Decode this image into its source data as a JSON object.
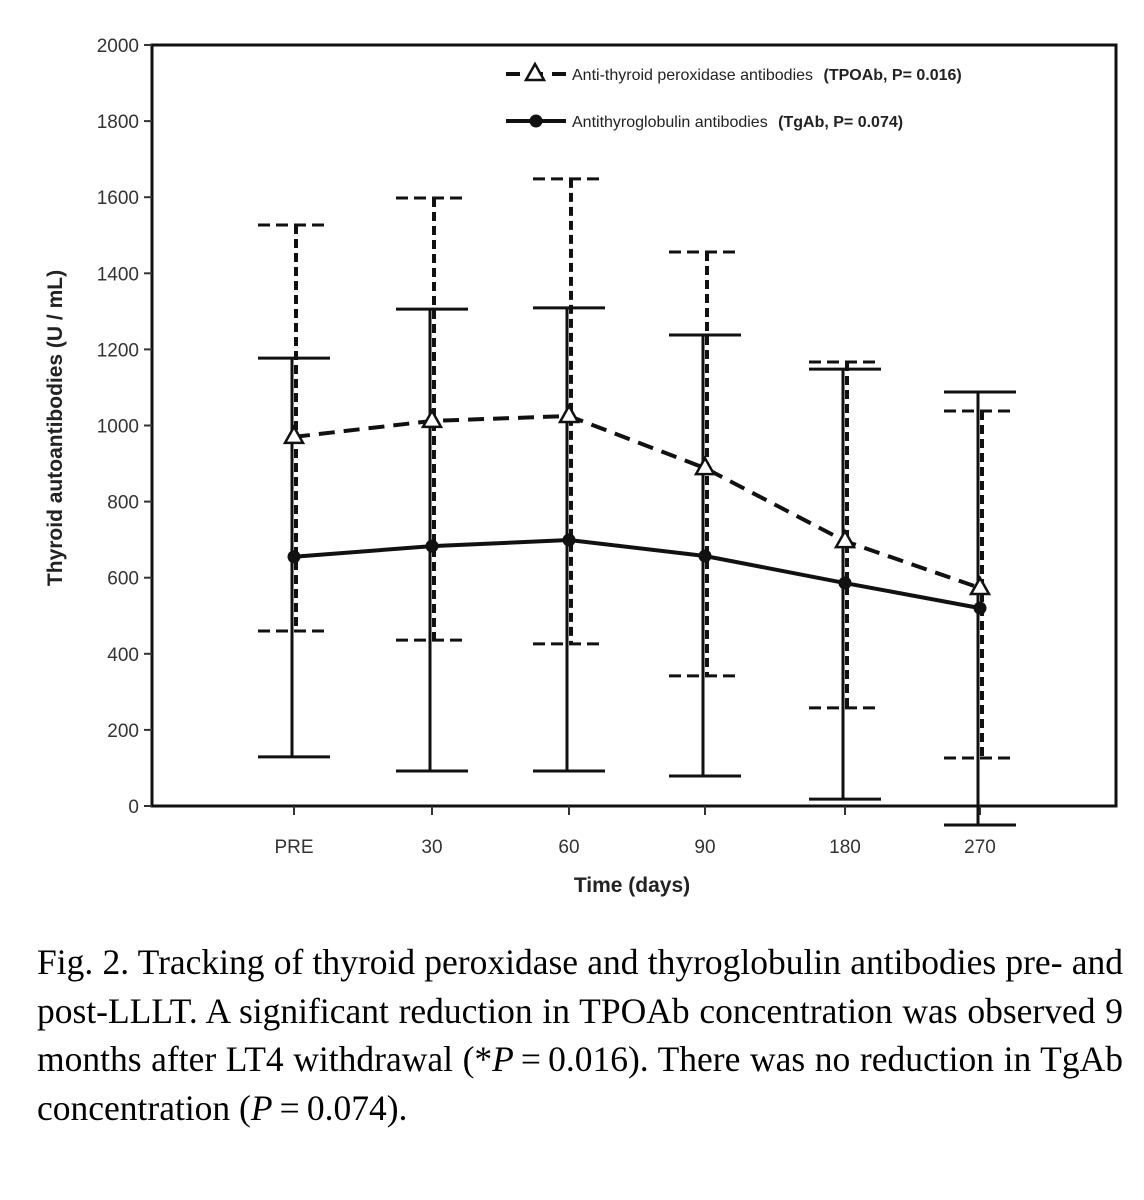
{
  "chart_data": {
    "type": "line",
    "title": "",
    "xlabel": "Time  (days)",
    "ylabel": "Thyroid autoantibodies (U / mL)",
    "categories": [
      "PRE",
      "30",
      "60",
      "90",
      "180",
      "270"
    ],
    "ylim": [
      0,
      2000
    ],
    "yticks": [
      0,
      200,
      400,
      600,
      800,
      1000,
      1200,
      1400,
      1600,
      1800,
      2000
    ],
    "grid": false,
    "legend_position": "top-right",
    "series": [
      {
        "name": "Anti-thyroid peroxidase antibodies",
        "legend_bold": "(TPOAb, P= 0.016)",
        "marker": "open-triangle",
        "line_style": "dashed",
        "values": [
          970,
          1012,
          1025,
          888,
          696,
          573
        ],
        "error_upper": [
          1527,
          1598,
          1648,
          1456,
          1167,
          1038
        ],
        "error_lower": [
          460,
          436,
          426,
          342,
          258,
          126
        ]
      },
      {
        "name": "Antithyroglobulin antibodies",
        "legend_bold": "(TgAb, P= 0.074)",
        "marker": "filled-circle",
        "line_style": "solid",
        "values": [
          655,
          683,
          699,
          657,
          586,
          520
        ],
        "error_upper": [
          1177,
          1306,
          1309,
          1238,
          1148,
          1088
        ],
        "error_lower": [
          129,
          92,
          92,
          79,
          18,
          -50
        ]
      }
    ]
  },
  "caption": {
    "lead": "Fig. 2. Tracking of thyroid peroxidase and thyroglobulin antibodies pre- and post-LLLT. A significant reduction in TPOAb concentration was observed 9 months after LT4 withdrawal (*",
    "p1_var": "P",
    "p1_rest": " = 0.016). There was no reduction in TgAb concentration (",
    "p2_var": "P",
    "p2_rest": " = 0.074)."
  }
}
